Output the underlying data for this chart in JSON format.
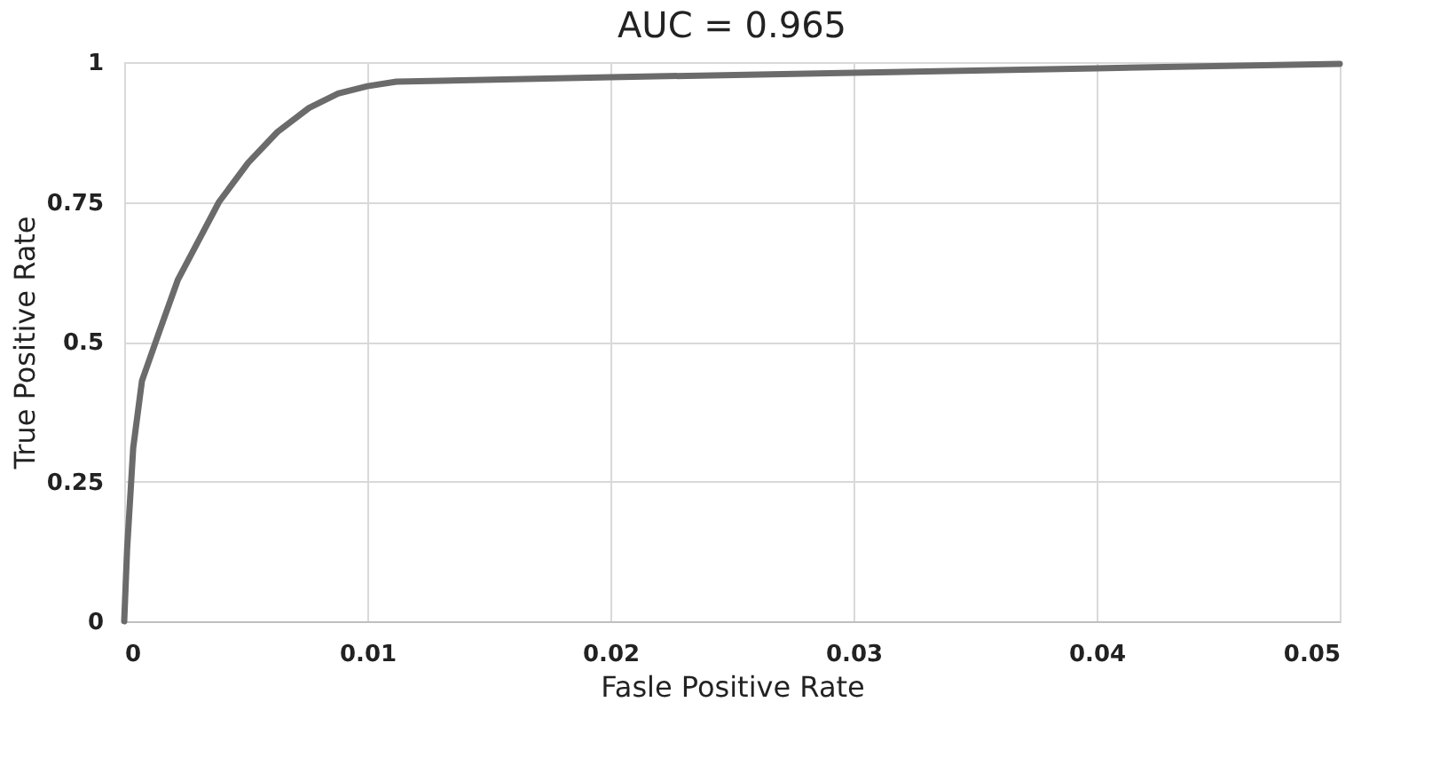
{
  "chart_data": {
    "type": "line",
    "title": "AUC = 0.965",
    "xlabel": "Fasle Positive Rate",
    "ylabel": "True Positive Rate",
    "x": [
      0,
      0.00012,
      0.00037,
      0.00073,
      0.00146,
      0.0022,
      0.0039,
      0.0051,
      0.0063,
      0.0076,
      0.0088,
      0.01,
      0.0112,
      0.02,
      0.03,
      0.04,
      0.05
    ],
    "series": [
      {
        "color": "#6b6b6b",
        "values": [
          0,
          0.13,
          0.31,
          0.43,
          0.52,
          0.61,
          0.75,
          0.82,
          0.875,
          0.918,
          0.944,
          0.957,
          0.965,
          0.973,
          0.981,
          0.989,
          0.997
        ]
      }
    ],
    "xlim": [
      0,
      0.05
    ],
    "xticks": [
      0,
      0.01,
      0.02,
      0.03,
      0.04,
      0.05
    ],
    "ylim": [
      0,
      1
    ],
    "yticks": [
      0,
      0.25,
      0.5,
      0.75,
      1
    ],
    "grid": true,
    "marker": "none",
    "line_style": "solid"
  }
}
